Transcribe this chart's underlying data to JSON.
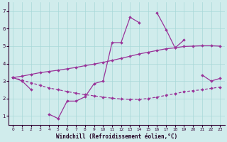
{
  "x": [
    0,
    1,
    2,
    3,
    4,
    5,
    6,
    7,
    8,
    9,
    10,
    11,
    12,
    13,
    14,
    15,
    16,
    17,
    18,
    19,
    20,
    21,
    22,
    23
  ],
  "line_zigzag_high": [
    3.2,
    null,
    null,
    null,
    null,
    null,
    null,
    null,
    null,
    null,
    null,
    5.2,
    5.2,
    6.65,
    6.35,
    null,
    6.9,
    5.95,
    4.9,
    5.35,
    null,
    null,
    null,
    null
  ],
  "line_zigzag_low": [
    3.2,
    3.0,
    2.5,
    null,
    1.1,
    0.85,
    1.85,
    1.85,
    2.1,
    2.85,
    3.0,
    null,
    null,
    null,
    null,
    null,
    null,
    null,
    null,
    null,
    null,
    null,
    null,
    null
  ],
  "line_zigzag_right": [
    null,
    null,
    null,
    null,
    null,
    null,
    null,
    null,
    null,
    null,
    null,
    null,
    null,
    null,
    null,
    null,
    null,
    null,
    null,
    null,
    null,
    3.35,
    3.0,
    3.15
  ],
  "line_connected": [
    3.2,
    3.0,
    2.5,
    null,
    1.1,
    0.85,
    1.85,
    1.85,
    2.1,
    2.85,
    3.0,
    5.2,
    5.2,
    6.65,
    6.35,
    null,
    6.9,
    5.95,
    4.9,
    5.35,
    null,
    3.35,
    3.0,
    3.15
  ],
  "line_upper": [
    3.2,
    3.28,
    3.38,
    3.48,
    3.55,
    3.62,
    3.7,
    3.78,
    3.88,
    3.97,
    4.07,
    4.18,
    4.3,
    4.42,
    4.55,
    4.65,
    4.75,
    4.85,
    4.9,
    4.98,
    5.0,
    5.02,
    5.02,
    5.0
  ],
  "line_lower": [
    3.2,
    3.05,
    2.9,
    2.75,
    2.6,
    2.5,
    2.4,
    2.3,
    2.22,
    2.15,
    2.08,
    2.02,
    1.97,
    1.95,
    1.95,
    2.0,
    2.08,
    2.18,
    2.28,
    2.38,
    2.45,
    2.5,
    2.58,
    2.65
  ],
  "color": "#993399",
  "bg_color": "#d0ecec",
  "grid_color": "#a8d8d8",
  "xlabel": "Windchill (Refroidissement éolien,°C)",
  "xlim": [
    -0.5,
    23.5
  ],
  "ylim": [
    0.5,
    7.5
  ],
  "yticks": [
    1,
    2,
    3,
    4,
    5,
    6,
    7
  ],
  "xticks": [
    0,
    1,
    2,
    3,
    4,
    5,
    6,
    7,
    8,
    9,
    10,
    11,
    12,
    13,
    14,
    15,
    16,
    17,
    18,
    19,
    20,
    21,
    22,
    23
  ]
}
